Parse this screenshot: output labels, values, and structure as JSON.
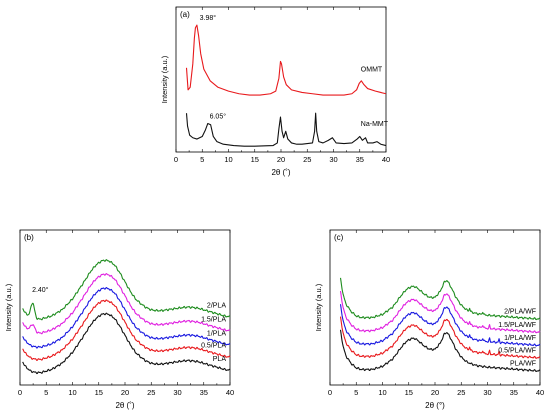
{
  "chart_data": [
    {
      "type": "line",
      "panel_label": "(a)",
      "xlabel": "2θ (˚)",
      "ylabel": "Intensity (a.u.)",
      "xlim": [
        0,
        40
      ],
      "x_ticks": [
        0,
        5,
        10,
        15,
        20,
        25,
        30,
        35,
        40
      ],
      "y_ticks": [],
      "series": [
        {
          "name": "OMMT",
          "color": "#e8191c",
          "points": [
            [
              2,
              0.63
            ],
            [
              2.3,
              0.46
            ],
            [
              2.7,
              0.48
            ],
            [
              3.2,
              0.66
            ],
            [
              3.5,
              0.86
            ],
            [
              3.7,
              0.94
            ],
            [
              3.98,
              0.96
            ],
            [
              4.3,
              0.88
            ],
            [
              4.7,
              0.74
            ],
            [
              5.3,
              0.62
            ],
            [
              6.5,
              0.53
            ],
            [
              8,
              0.48
            ],
            [
              10,
              0.45
            ],
            [
              12,
              0.43
            ],
            [
              14,
              0.42
            ],
            [
              16,
              0.42
            ],
            [
              18,
              0.43
            ],
            [
              19,
              0.45
            ],
            [
              19.6,
              0.55
            ],
            [
              19.9,
              0.68
            ],
            [
              20.1,
              0.66
            ],
            [
              20.5,
              0.56
            ],
            [
              21,
              0.5
            ],
            [
              22,
              0.46
            ],
            [
              24,
              0.44
            ],
            [
              26,
              0.43
            ],
            [
              28,
              0.42
            ],
            [
              30,
              0.42
            ],
            [
              32,
              0.42
            ],
            [
              33.5,
              0.43
            ],
            [
              34.4,
              0.46
            ],
            [
              34.9,
              0.51
            ],
            [
              35.3,
              0.53
            ],
            [
              35.8,
              0.5
            ],
            [
              36.5,
              0.47
            ],
            [
              38,
              0.45
            ],
            [
              40,
              0.43
            ]
          ]
        },
        {
          "name": "Na-MMT",
          "color": "#111111",
          "points": [
            [
              2,
              0.28
            ],
            [
              2.2,
              0.18
            ],
            [
              2.6,
              0.11
            ],
            [
              3.2,
              0.09
            ],
            [
              4,
              0.08
            ],
            [
              5,
              0.1
            ],
            [
              5.6,
              0.15
            ],
            [
              6.05,
              0.2
            ],
            [
              6.6,
              0.19
            ],
            [
              7.1,
              0.1
            ],
            [
              7.8,
              0.06
            ],
            [
              9,
              0.04
            ],
            [
              11,
              0.03
            ],
            [
              13,
              0.025
            ],
            [
              15,
              0.025
            ],
            [
              17,
              0.028
            ],
            [
              18.5,
              0.03
            ],
            [
              19.3,
              0.05
            ],
            [
              19.6,
              0.16
            ],
            [
              19.9,
              0.25
            ],
            [
              20.2,
              0.14
            ],
            [
              20.5,
              0.09
            ],
            [
              20.9,
              0.14
            ],
            [
              21.3,
              0.08
            ],
            [
              22,
              0.05
            ],
            [
              23,
              0.04
            ],
            [
              24,
              0.04
            ],
            [
              25,
              0.045
            ],
            [
              26,
              0.05
            ],
            [
              26.4,
              0.14
            ],
            [
              26.6,
              0.28
            ],
            [
              26.8,
              0.14
            ],
            [
              27.2,
              0.06
            ],
            [
              28,
              0.05
            ],
            [
              29,
              0.07
            ],
            [
              29.8,
              0.09
            ],
            [
              30.5,
              0.05
            ],
            [
              32,
              0.045
            ],
            [
              33.5,
              0.05
            ],
            [
              34.5,
              0.08
            ],
            [
              35,
              0.1
            ],
            [
              35.5,
              0.07
            ],
            [
              36.1,
              0.09
            ],
            [
              36.5,
              0.05
            ],
            [
              37.5,
              0.05
            ],
            [
              38.3,
              0.06
            ],
            [
              39,
              0.04
            ],
            [
              40,
              0.03
            ]
          ]
        }
      ],
      "annotations": [
        {
          "text": "3.98°",
          "x": 4.5,
          "y": 1.0
        },
        {
          "text": "6.05°",
          "x": 6.4,
          "y": 0.24
        },
        {
          "text": "OMMT",
          "x": 35.2,
          "y": 0.6
        },
        {
          "text": "Na-MMT",
          "x": 35.2,
          "y": 0.18
        }
      ]
    },
    {
      "type": "line",
      "panel_label": "(b)",
      "xlabel": "2θ (˚)",
      "ylabel": "Intensity (a.u.)",
      "xlim": [
        0,
        40
      ],
      "x_ticks": [
        0,
        5,
        10,
        15,
        20,
        25,
        30,
        35,
        40
      ],
      "y_ticks": [],
      "profile": [
        [
          0.5,
          0.1
        ],
        [
          1,
          0.07
        ],
        [
          2,
          0.04
        ],
        [
          3,
          0.03
        ],
        [
          4,
          0.03
        ],
        [
          6,
          0.05
        ],
        [
          8,
          0.09
        ],
        [
          10,
          0.16
        ],
        [
          12,
          0.26
        ],
        [
          13.5,
          0.34
        ],
        [
          14.5,
          0.38
        ],
        [
          15.5,
          0.405
        ],
        [
          16.2,
          0.41
        ],
        [
          17,
          0.405
        ],
        [
          18,
          0.38
        ],
        [
          19,
          0.33
        ],
        [
          20,
          0.27
        ],
        [
          21,
          0.21
        ],
        [
          22,
          0.16
        ],
        [
          23,
          0.13
        ],
        [
          24,
          0.105
        ],
        [
          25,
          0.09
        ],
        [
          26,
          0.085
        ],
        [
          27,
          0.085
        ],
        [
          28,
          0.09
        ],
        [
          29,
          0.095
        ],
        [
          30,
          0.1
        ],
        [
          31,
          0.105
        ],
        [
          32,
          0.108
        ],
        [
          33,
          0.105
        ],
        [
          34,
          0.1
        ],
        [
          35,
          0.09
        ],
        [
          36,
          0.08
        ],
        [
          37,
          0.07
        ],
        [
          38,
          0.06
        ],
        [
          39,
          0.05
        ],
        [
          40,
          0.045
        ]
      ],
      "series": [
        {
          "name": "PLA",
          "color": "#111111",
          "offset": 0.0
        },
        {
          "name": "0.5/PLA",
          "color": "#e8191c",
          "offset": 0.085
        },
        {
          "name": "1/PLA",
          "color": "#1818e0",
          "offset": 0.165
        },
        {
          "name": "1.5/PLA",
          "color": "#e020e0",
          "offset": 0.255,
          "extra_peak": {
            "x": 2.4,
            "height": 0.05,
            "width": 0.6
          }
        },
        {
          "name": "2/PLA",
          "color": "#1e8c1e",
          "offset": 0.345,
          "extra_peak": {
            "x": 2.4,
            "height": 0.1,
            "width": 0.5
          }
        }
      ],
      "annotations": [
        {
          "text": "2.40°",
          "x": 2.3,
          "y": 0.55
        }
      ]
    },
    {
      "type": "line",
      "panel_label": "(c)",
      "xlabel": "2θ (°)",
      "ylabel": "Intensity (a.u.)",
      "xlim": [
        0,
        40
      ],
      "x_ticks": [
        0,
        5,
        10,
        15,
        20,
        25,
        30,
        35,
        40
      ],
      "y_ticks": [],
      "profile": [
        [
          2,
          0.3
        ],
        [
          2.5,
          0.2
        ],
        [
          3,
          0.14
        ],
        [
          4,
          0.09
        ],
        [
          5,
          0.06
        ],
        [
          6,
          0.05
        ],
        [
          8,
          0.05
        ],
        [
          10,
          0.07
        ],
        [
          12,
          0.12
        ],
        [
          13.5,
          0.19
        ],
        [
          14.5,
          0.23
        ],
        [
          15.5,
          0.25
        ],
        [
          16.2,
          0.25
        ],
        [
          17,
          0.23
        ],
        [
          18,
          0.2
        ],
        [
          19,
          0.18
        ],
        [
          20,
          0.18
        ],
        [
          21,
          0.22
        ],
        [
          21.8,
          0.28
        ],
        [
          22.3,
          0.29
        ],
        [
          23,
          0.25
        ],
        [
          24,
          0.18
        ],
        [
          25,
          0.13
        ],
        [
          26,
          0.1
        ],
        [
          27,
          0.085
        ],
        [
          28,
          0.075
        ],
        [
          29,
          0.07
        ],
        [
          30,
          0.065
        ],
        [
          32,
          0.06
        ],
        [
          34,
          0.055
        ],
        [
          36,
          0.05
        ],
        [
          38,
          0.045
        ],
        [
          40,
          0.04
        ]
      ],
      "series": [
        {
          "name": "PLA/WF",
          "color": "#111111",
          "offset": 0.0
        },
        {
          "name": "0.5/PLA/WF",
          "color": "#e8191c",
          "offset": 0.085,
          "spikes": [
            26.6,
            29.1,
            30.4,
            32.2
          ]
        },
        {
          "name": "1/PLA/WF",
          "color": "#1818e0",
          "offset": 0.165,
          "spikes": [
            26.6,
            29.1,
            30.4,
            32.2
          ]
        },
        {
          "name": "1.5/PLA/WF",
          "color": "#e020e0",
          "offset": 0.25,
          "spikes": [
            26.6,
            29.1,
            30.4
          ]
        },
        {
          "name": "2/PLA/WF",
          "color": "#1e8c1e",
          "offset": 0.335,
          "spikes": [
            26.6,
            29.1
          ]
        }
      ],
      "annotations": []
    }
  ]
}
